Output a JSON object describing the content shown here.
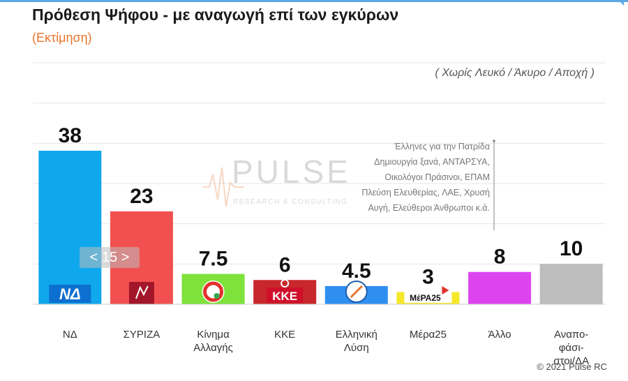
{
  "header": {
    "title": "Πρόθεση Ψήφου - με αναγωγή επί των εγκύρων",
    "subtitle": "(Εκτίμηση)",
    "note": "( Χωρίς Λευκό / Άκυρο / Αποχή )"
  },
  "watermark": {
    "brand": "PULSE",
    "tagline": "RESEARCH & CONSULTING"
  },
  "annotation": {
    "lines": [
      "Έλληνες για την Πατρίδα",
      "Δημιουργία ξανά, ΑΝΤΑΡΣΥΑ,",
      "Οικολόγοι Πράσινοι, ΕΠΑΜ",
      "Πλεύση Ελευθερίας, ΛΑΕ, Χρυσή",
      "Αυγή, Ελεύθεροι Άνθρωποι κ.ά."
    ]
  },
  "pager": {
    "label": "< 15 >"
  },
  "footer": {
    "copyright": "© 2021 Pulse RC"
  },
  "chart_data": {
    "type": "bar",
    "title": "Πρόθεση Ψήφου - με αναγωγή επί των εγκύρων",
    "subtitle": "(Εκτίμηση)",
    "categories": [
      [
        "ΝΔ"
      ],
      [
        "ΣΥΡΙΖΑ"
      ],
      [
        "Κίνημα",
        "Αλλαγής"
      ],
      [
        "ΚΚΕ"
      ],
      [
        "Ελληνική",
        "Λύση"
      ],
      [
        "Μέρα25"
      ],
      [
        "Άλλο"
      ],
      [
        "Αναπο-",
        "φάσι-",
        "στοι/ΔΑ"
      ]
    ],
    "values": [
      38,
      23,
      7.5,
      6,
      4.5,
      3,
      8,
      10
    ],
    "value_labels": [
      "38",
      "23",
      "7.5",
      "6",
      "4.5",
      "3",
      "8",
      "10"
    ],
    "colors": [
      "#10a8ec",
      "#f25050",
      "#7ee23a",
      "#c8272b",
      "#2f8ff0",
      "#f5e82a",
      "#dd44f0",
      "#bdbdbd"
    ],
    "logos": [
      {
        "kind": "nd-logo",
        "text": "ΝΔ"
      },
      {
        "kind": "syriza-logo",
        "text": ""
      },
      {
        "kind": "kinal-logo",
        "text": ""
      },
      {
        "kind": "kke-logo",
        "text": "ΚΚΕ"
      },
      {
        "kind": "elliniki-lysi-logo",
        "text": ""
      },
      {
        "kind": "mera25-logo",
        "text": "ΜέΡΑ25"
      },
      null,
      null
    ],
    "ylim": [
      0,
      38
    ],
    "grid": true,
    "legend": "none"
  }
}
